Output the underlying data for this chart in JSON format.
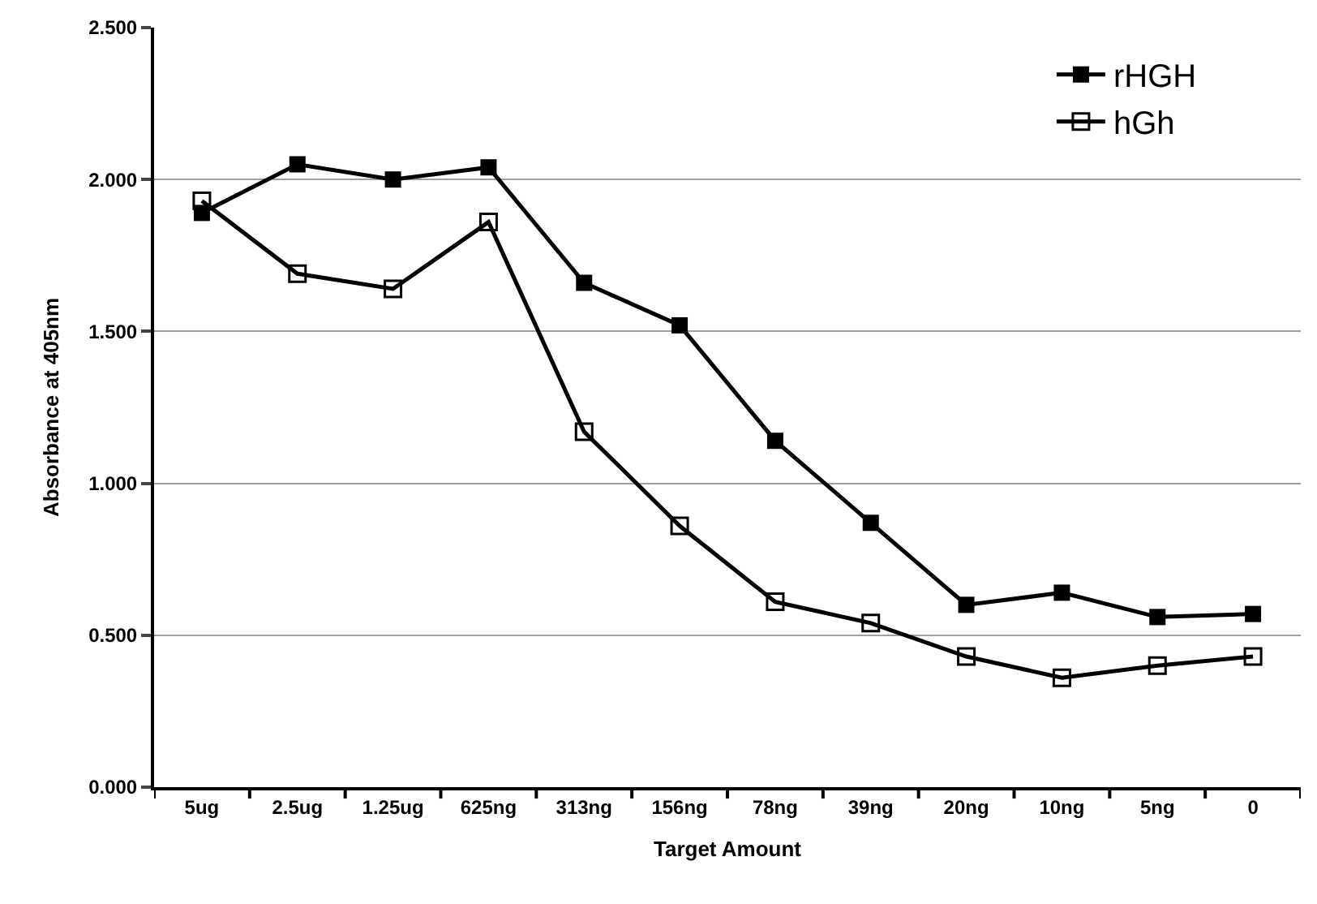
{
  "chart_data": {
    "type": "line",
    "xlabel": "Target Amount",
    "ylabel": "Absorbance at 405nm",
    "categories": [
      "5ug",
      "2.5ug",
      "1.25ug",
      "625ng",
      "313ng",
      "156ng",
      "78ng",
      "39ng",
      "20ng",
      "10ng",
      "5ng",
      "0"
    ],
    "series": [
      {
        "name": "rHGH",
        "color": "#000000",
        "marker": "square",
        "values": [
          1.89,
          2.05,
          2.0,
          2.04,
          1.66,
          1.52,
          1.14,
          0.87,
          0.6,
          0.64,
          0.56,
          0.57
        ]
      },
      {
        "name": "hGh",
        "color": "#000000",
        "marker": "square",
        "values": [
          1.93,
          1.69,
          1.64,
          1.86,
          1.17,
          0.86,
          0.61,
          0.54,
          0.43,
          0.36,
          0.4,
          0.43
        ]
      }
    ],
    "ylim": [
      0,
      2.5
    ],
    "yticks": [
      {
        "value": 0,
        "label": "0.000"
      },
      {
        "value": 0.5,
        "label": "0.500"
      },
      {
        "value": 1,
        "label": "1.000"
      },
      {
        "value": 1.5,
        "label": "1.500"
      },
      {
        "value": 2,
        "label": "2.000"
      },
      {
        "value": 2.5,
        "label": "2.500"
      }
    ],
    "grid": "y",
    "legend": "top right",
    "line_style": "solid"
  }
}
